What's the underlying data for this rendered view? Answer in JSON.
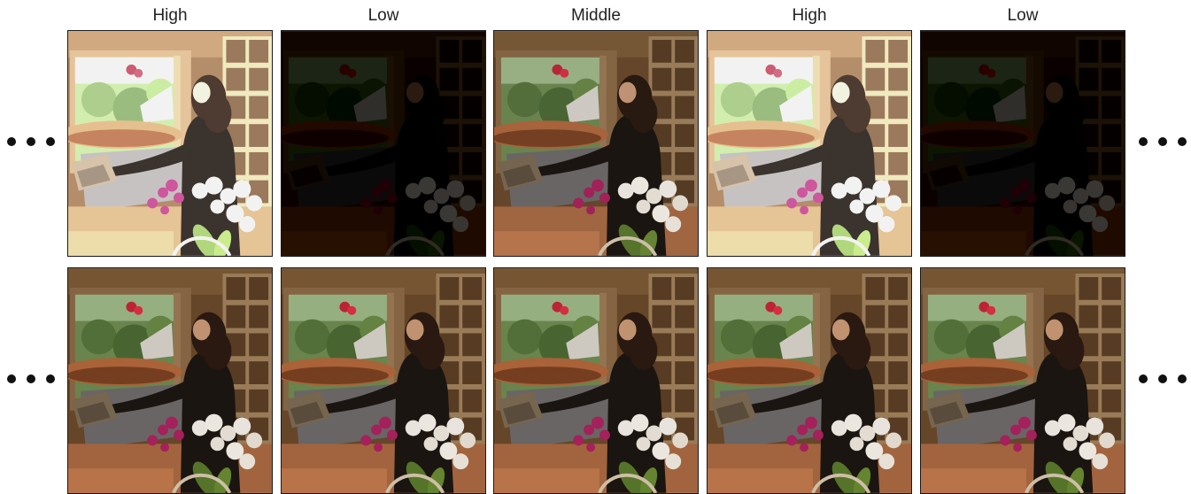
{
  "columns": [
    {
      "label": "High",
      "key": "c1"
    },
    {
      "label": "Low",
      "key": "c2"
    },
    {
      "label": "Middle",
      "key": "c3"
    },
    {
      "label": "High",
      "key": "c4"
    },
    {
      "label": "Low",
      "key": "c5"
    }
  ],
  "exposure_levels": {
    "High": {
      "filter": "brightness(1.9) saturate(0.7) contrast(0.9)"
    },
    "Low": {
      "filter": "brightness(0.28) contrast(1.2)"
    },
    "Middle": {
      "filter": "brightness(0.95)"
    },
    "Normal": {
      "filter": "brightness(0.95) saturate(1.05)"
    }
  },
  "rows": [
    {
      "name": "input-exposures-row",
      "levels": [
        "High",
        "Low",
        "Middle",
        "High",
        "Low"
      ]
    },
    {
      "name": "reconstructed-row",
      "levels": [
        "Normal",
        "Normal",
        "Normal",
        "Normal",
        "Normal"
      ]
    }
  ],
  "ellipsis": "•••"
}
